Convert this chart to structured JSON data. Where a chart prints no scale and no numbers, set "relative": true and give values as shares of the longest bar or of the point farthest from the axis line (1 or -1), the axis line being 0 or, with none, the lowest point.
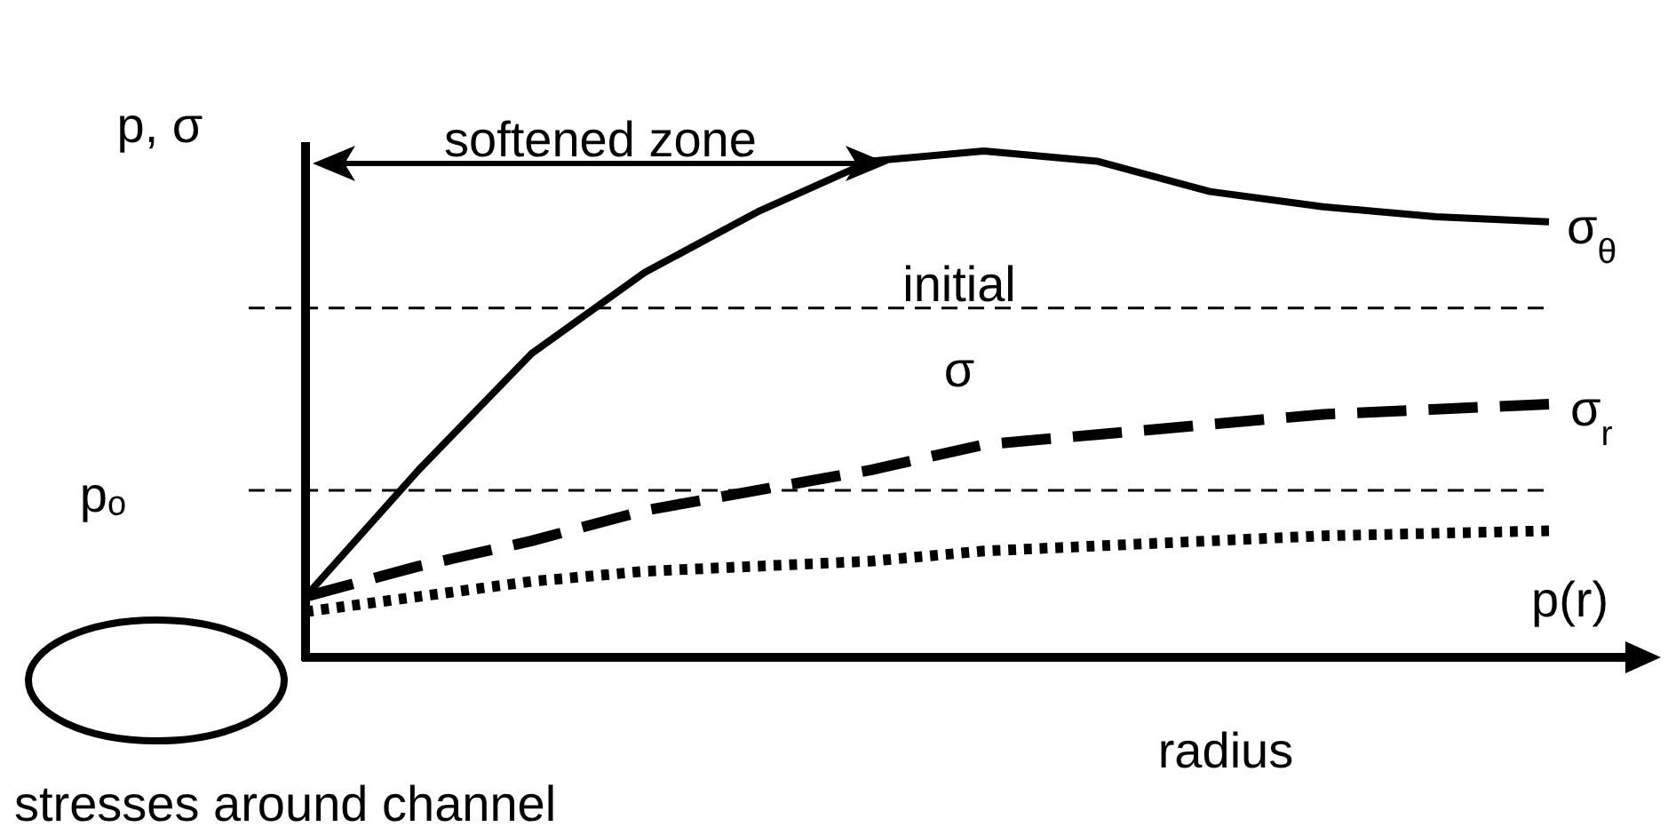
{
  "chart_data": {
    "type": "line",
    "relative": true,
    "xlabel": "radius",
    "ylabel": "p, σ",
    "categories": [
      null,
      null,
      null,
      null,
      null,
      null,
      null,
      null,
      null,
      null,
      null,
      null
    ],
    "series": [
      {
        "name": "σ$_{θ}$",
        "color": "#000000",
        "line_style": "solid",
        "values": [
          0.12,
          0.37,
          0.6,
          0.76,
          0.88,
          0.98,
          1,
          0.98,
          0.92,
          0.89,
          0.87,
          0.86
        ]
      },
      {
        "name": "σ$_{r}$",
        "color": "#000000",
        "line_style": "dashed",
        "values": [
          0.12,
          0.18,
          0.23,
          0.29,
          0.33,
          0.37,
          0.42,
          0.44,
          0.46,
          0.48,
          0.49,
          0.5
        ]
      },
      {
        "name": "p(r)",
        "color": "#000000",
        "line_style": "dotted",
        "values": [
          0.09,
          0.12,
          0.15,
          0.17,
          0.18,
          0.19,
          0.21,
          0.22,
          0.23,
          0.24,
          0.245,
          0.25
        ]
      }
    ],
    "ref_lines": [
      {
        "axis": "y",
        "value": 0.69,
        "label": "initial σ",
        "line_style": "dashed",
        "color": "#000000"
      },
      {
        "axis": "y",
        "value": 0.33,
        "label": "pₒ",
        "line_style": "dashed",
        "color": "#000000"
      }
    ],
    "annotations": [
      "softened zone",
      "stresses around channel"
    ]
  }
}
